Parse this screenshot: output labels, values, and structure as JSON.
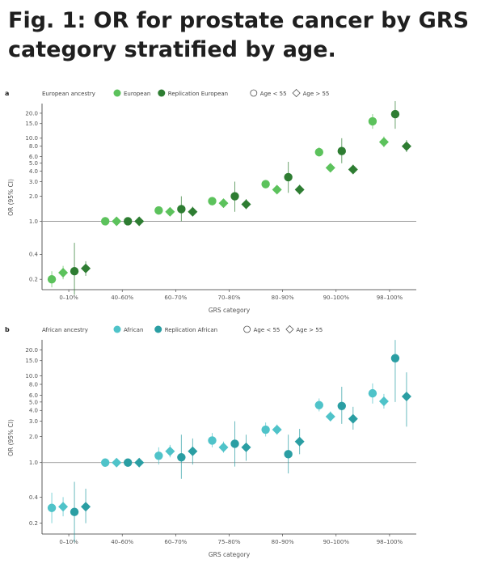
{
  "title": "Fig. 1: OR for prostate cancer by GRS category stratified by age.",
  "chart_data": [
    {
      "type": "scatter",
      "panel_label": "a",
      "subtitle": "European ancestry",
      "xlabel": "GRS category",
      "ylabel": "OR (95% CI)",
      "ylog": true,
      "ylim": [
        0.15,
        25
      ],
      "yticks": [
        "20.0",
        "15.0",
        "10.0",
        "8.0",
        "6.0",
        "5.0",
        "4.0",
        "3.0",
        "2.0",
        "1.0",
        "0.4",
        "0.2"
      ],
      "categories": [
        "0–10%",
        "40–60%",
        "60–70%",
        "70–80%",
        "80–90%",
        "90–100%",
        "98–100%"
      ],
      "reference_line": 1.0,
      "legend": {
        "series": [
          {
            "name": "European",
            "color": "#5cc25c"
          },
          {
            "name": "Replication European",
            "color": "#2e7d32"
          }
        ],
        "shapes": [
          {
            "name": "Age < 55",
            "shape": "circle"
          },
          {
            "name": "Age > 55",
            "shape": "diamond"
          }
        ]
      },
      "points": [
        {
          "category": "0–10%",
          "series": "European",
          "age": "Age < 55",
          "or": 0.2,
          "lo": 0.16,
          "hi": 0.25
        },
        {
          "category": "0–10%",
          "series": "European",
          "age": "Age > 55",
          "or": 0.24,
          "lo": 0.2,
          "hi": 0.29
        },
        {
          "category": "0–10%",
          "series": "Replication European",
          "age": "Age < 55",
          "or": 0.25,
          "lo": 0.13,
          "hi": 0.55
        },
        {
          "category": "0–10%",
          "series": "Replication European",
          "age": "Age > 55",
          "or": 0.27,
          "lo": 0.22,
          "hi": 0.33
        },
        {
          "category": "40–60%",
          "series": "European",
          "age": "Age < 55",
          "or": 1.0,
          "lo": 1.0,
          "hi": 1.0
        },
        {
          "category": "40–60%",
          "series": "European",
          "age": "Age > 55",
          "or": 1.0,
          "lo": 1.0,
          "hi": 1.0
        },
        {
          "category": "40–60%",
          "series": "Replication European",
          "age": "Age < 55",
          "or": 1.0,
          "lo": 1.0,
          "hi": 1.0
        },
        {
          "category": "40–60%",
          "series": "Replication European",
          "age": "Age > 55",
          "or": 1.0,
          "lo": 1.0,
          "hi": 1.0
        },
        {
          "category": "60–70%",
          "series": "European",
          "age": "Age < 55",
          "or": 1.35,
          "lo": 1.2,
          "hi": 1.5
        },
        {
          "category": "60–70%",
          "series": "European",
          "age": "Age > 55",
          "or": 1.3,
          "lo": 1.2,
          "hi": 1.42
        },
        {
          "category": "60–70%",
          "series": "Replication European",
          "age": "Age < 55",
          "or": 1.4,
          "lo": 1.0,
          "hi": 2.0
        },
        {
          "category": "60–70%",
          "series": "Replication European",
          "age": "Age > 55",
          "or": 1.3,
          "lo": 1.15,
          "hi": 1.5
        },
        {
          "category": "70–80%",
          "series": "European",
          "age": "Age < 55",
          "or": 1.75,
          "lo": 1.55,
          "hi": 1.95
        },
        {
          "category": "70–80%",
          "series": "European",
          "age": "Age > 55",
          "or": 1.65,
          "lo": 1.5,
          "hi": 1.8
        },
        {
          "category": "70–80%",
          "series": "Replication European",
          "age": "Age < 55",
          "or": 2.0,
          "lo": 1.3,
          "hi": 3.0
        },
        {
          "category": "70–80%",
          "series": "Replication European",
          "age": "Age > 55",
          "or": 1.6,
          "lo": 1.4,
          "hi": 1.85
        },
        {
          "category": "80–90%",
          "series": "European",
          "age": "Age < 55",
          "or": 2.8,
          "lo": 2.5,
          "hi": 3.1
        },
        {
          "category": "80–90%",
          "series": "European",
          "age": "Age > 55",
          "or": 2.4,
          "lo": 2.2,
          "hi": 2.6
        },
        {
          "category": "80–90%",
          "series": "Replication European",
          "age": "Age < 55",
          "or": 3.4,
          "lo": 2.2,
          "hi": 5.2
        },
        {
          "category": "80–90%",
          "series": "Replication European",
          "age": "Age > 55",
          "or": 2.4,
          "lo": 2.1,
          "hi": 2.75
        },
        {
          "category": "90–100%",
          "series": "European",
          "age": "Age < 55",
          "or": 6.8,
          "lo": 6.0,
          "hi": 7.8
        },
        {
          "category": "90–100%",
          "series": "European",
          "age": "Age > 55",
          "or": 4.4,
          "lo": 4.0,
          "hi": 4.9
        },
        {
          "category": "90–100%",
          "series": "Replication European",
          "age": "Age < 55",
          "or": 7.0,
          "lo": 5.0,
          "hi": 10.0
        },
        {
          "category": "90–100%",
          "series": "Replication European",
          "age": "Age > 55",
          "or": 4.2,
          "lo": 3.7,
          "hi": 4.8
        },
        {
          "category": "98–100%",
          "series": "European",
          "age": "Age < 55",
          "or": 16.0,
          "lo": 13.0,
          "hi": 19.5
        },
        {
          "category": "98–100%",
          "series": "European",
          "age": "Age > 55",
          "or": 9.0,
          "lo": 7.8,
          "hi": 10.5
        },
        {
          "category": "98–100%",
          "series": "Replication European",
          "age": "Age < 55",
          "or": 19.5,
          "lo": 13.0,
          "hi": 28.0
        },
        {
          "category": "98–100%",
          "series": "Replication European",
          "age": "Age > 55",
          "or": 8.0,
          "lo": 6.8,
          "hi": 9.5
        }
      ]
    },
    {
      "type": "scatter",
      "panel_label": "b",
      "subtitle": "African ancestry",
      "xlabel": "GRS category",
      "ylabel": "OR (95% CI)",
      "ylog": true,
      "ylim": [
        0.15,
        25
      ],
      "yticks": [
        "20.0",
        "15.0",
        "10.0",
        "8.0",
        "6.0",
        "5.0",
        "4.0",
        "3.0",
        "2.0",
        "1.0",
        "0.4",
        "0.2"
      ],
      "categories": [
        "0–10%",
        "40–60%",
        "60–70%",
        "75–80%",
        "80–90%",
        "90–100%",
        "98–100%"
      ],
      "reference_line": 1.0,
      "legend": {
        "series": [
          {
            "name": "African",
            "color": "#4fc3c9"
          },
          {
            "name": "Replication African",
            "color": "#2a9ea3"
          }
        ],
        "shapes": [
          {
            "name": "Age < 55",
            "shape": "circle"
          },
          {
            "name": "Age > 55",
            "shape": "diamond"
          }
        ]
      },
      "points": [
        {
          "category": "0–10%",
          "series": "African",
          "age": "Age < 55",
          "or": 0.3,
          "lo": 0.2,
          "hi": 0.45
        },
        {
          "category": "0–10%",
          "series": "African",
          "age": "Age > 55",
          "or": 0.31,
          "lo": 0.24,
          "hi": 0.4
        },
        {
          "category": "0–10%",
          "series": "Replication African",
          "age": "Age < 55",
          "or": 0.27,
          "lo": 0.12,
          "hi": 0.6
        },
        {
          "category": "0–10%",
          "series": "Replication African",
          "age": "Age > 55",
          "or": 0.31,
          "lo": 0.2,
          "hi": 0.5
        },
        {
          "category": "40–60%",
          "series": "African",
          "age": "Age < 55",
          "or": 1.0,
          "lo": 1.0,
          "hi": 1.0
        },
        {
          "category": "40–60%",
          "series": "African",
          "age": "Age > 55",
          "or": 1.0,
          "lo": 1.0,
          "hi": 1.0
        },
        {
          "category": "40–60%",
          "series": "Replication African",
          "age": "Age < 55",
          "or": 1.0,
          "lo": 1.0,
          "hi": 1.0
        },
        {
          "category": "40–60%",
          "series": "Replication African",
          "age": "Age > 55",
          "or": 1.0,
          "lo": 1.0,
          "hi": 1.0
        },
        {
          "category": "60–70%",
          "series": "African",
          "age": "Age < 55",
          "or": 1.2,
          "lo": 0.95,
          "hi": 1.5
        },
        {
          "category": "60–70%",
          "series": "African",
          "age": "Age > 55",
          "or": 1.35,
          "lo": 1.15,
          "hi": 1.6
        },
        {
          "category": "60–70%",
          "series": "Replication African",
          "age": "Age < 55",
          "or": 1.15,
          "lo": 0.65,
          "hi": 2.1
        },
        {
          "category": "60–70%",
          "series": "Replication African",
          "age": "Age > 55",
          "or": 1.35,
          "lo": 0.95,
          "hi": 1.9
        },
        {
          "category": "75–80%",
          "series": "African",
          "age": "Age < 55",
          "or": 1.8,
          "lo": 1.5,
          "hi": 2.2
        },
        {
          "category": "75–80%",
          "series": "African",
          "age": "Age > 55",
          "or": 1.5,
          "lo": 1.3,
          "hi": 1.75
        },
        {
          "category": "75–80%",
          "series": "Replication African",
          "age": "Age < 55",
          "or": 1.65,
          "lo": 0.9,
          "hi": 3.0
        },
        {
          "category": "75–80%",
          "series": "Replication African",
          "age": "Age > 55",
          "or": 1.5,
          "lo": 1.05,
          "hi": 2.1
        },
        {
          "category": "80–90%",
          "series": "African",
          "age": "Age < 55",
          "or": 2.4,
          "lo": 2.0,
          "hi": 2.9
        },
        {
          "category": "80–90%",
          "series": "African",
          "age": "Age > 55",
          "or": 2.4,
          "lo": 2.1,
          "hi": 2.75
        },
        {
          "category": "80–90%",
          "series": "Replication African",
          "age": "Age < 55",
          "or": 1.25,
          "lo": 0.75,
          "hi": 2.1
        },
        {
          "category": "80–90%",
          "series": "Replication African",
          "age": "Age > 55",
          "or": 1.75,
          "lo": 1.25,
          "hi": 2.45
        },
        {
          "category": "90–100%",
          "series": "African",
          "age": "Age < 55",
          "or": 4.6,
          "lo": 3.9,
          "hi": 5.5
        },
        {
          "category": "90–100%",
          "series": "African",
          "age": "Age > 55",
          "or": 3.4,
          "lo": 3.0,
          "hi": 3.9
        },
        {
          "category": "90–100%",
          "series": "Replication African",
          "age": "Age < 55",
          "or": 4.5,
          "lo": 2.8,
          "hi": 7.5
        },
        {
          "category": "90–100%",
          "series": "Replication African",
          "age": "Age > 55",
          "or": 3.2,
          "lo": 2.4,
          "hi": 4.4
        },
        {
          "category": "98–100%",
          "series": "African",
          "age": "Age < 55",
          "or": 6.3,
          "lo": 4.8,
          "hi": 8.2
        },
        {
          "category": "98–100%",
          "series": "African",
          "age": "Age > 55",
          "or": 5.1,
          "lo": 4.2,
          "hi": 6.2
        },
        {
          "category": "98–100%",
          "series": "Replication African",
          "age": "Age < 55",
          "or": 16.0,
          "lo": 5.0,
          "hi": 26.0
        },
        {
          "category": "98–100%",
          "series": "Replication African",
          "age": "Age > 55",
          "or": 5.8,
          "lo": 2.6,
          "hi": 11.0
        }
      ]
    }
  ]
}
